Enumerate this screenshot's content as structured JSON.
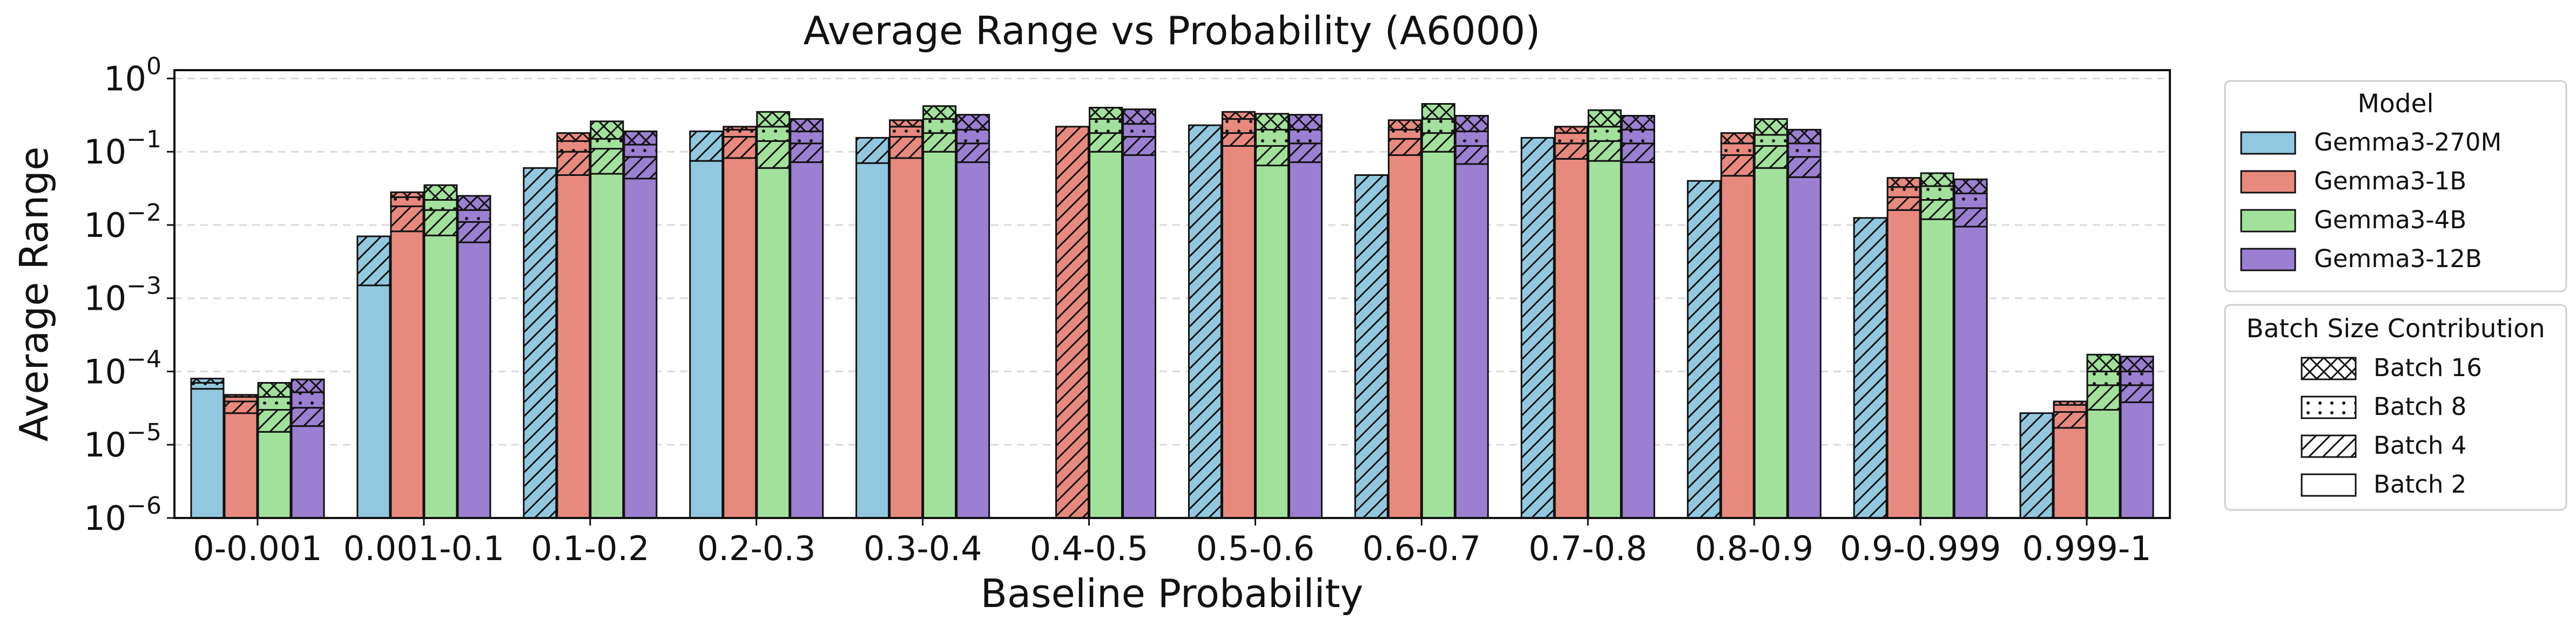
{
  "chart_data": {
    "type": "bar",
    "title": "Average Range vs Probability (A6000)",
    "xlabel": "Baseline Probability",
    "ylabel": "Average Range",
    "yscale": "log",
    "ylim": [
      1e-06,
      1.3
    ],
    "y_ticks": [
      {
        "value": 1e-06,
        "base": "10",
        "exp": "−6"
      },
      {
        "value": 1e-05,
        "base": "10",
        "exp": "−5"
      },
      {
        "value": 0.0001,
        "base": "10",
        "exp": "−4"
      },
      {
        "value": 0.001,
        "base": "10",
        "exp": "−3"
      },
      {
        "value": 0.01,
        "base": "10",
        "exp": "−2"
      },
      {
        "value": 0.1,
        "base": "10",
        "exp": "−1"
      },
      {
        "value": 1,
        "base": "10",
        "exp": "0"
      }
    ],
    "grid": "y-dashed",
    "categories": [
      "0-0.001",
      "0.001-0.1",
      "0.1-0.2",
      "0.2-0.3",
      "0.3-0.4",
      "0.4-0.5",
      "0.5-0.6",
      "0.6-0.7",
      "0.7-0.8",
      "0.8-0.9",
      "0.9-0.999",
      "0.999-1"
    ],
    "series": [
      {
        "name": "Gemma3-270M",
        "color": "#92c8df",
        "values": [
          {
            "b2": 5.8e-05,
            "b4": 5.8e-05,
            "b8": 7e-05,
            "b16": 8e-05
          },
          {
            "b2": 0.0015,
            "b4": 0.007,
            "b8": 0.007,
            "b16": 0.007
          },
          {
            "b2": 0.0,
            "b4": 0.06,
            "b8": 0.06,
            "b16": 0.06
          },
          {
            "b2": 0.075,
            "b4": 0.19,
            "b8": 0.19,
            "b16": 0.19
          },
          {
            "b2": 0.07,
            "b4": 0.155,
            "b8": 0.155,
            "b16": 0.155
          },
          {
            "b2": 0,
            "b4": 0,
            "b8": 0,
            "b16": 0
          },
          {
            "b2": 0.0,
            "b4": 0.23,
            "b8": 0.23,
            "b16": 0.23
          },
          {
            "b2": 0.0,
            "b4": 0.048,
            "b8": 0.048,
            "b16": 0.048
          },
          {
            "b2": 0.0,
            "b4": 0.155,
            "b8": 0.155,
            "b16": 0.155
          },
          {
            "b2": 0.0,
            "b4": 0.04,
            "b8": 0.04,
            "b16": 0.04
          },
          {
            "b2": 0.0,
            "b4": 0.0125,
            "b8": 0.0125,
            "b16": 0.0125
          },
          {
            "b2": 0.0,
            "b4": 2.7e-05,
            "b8": 2.7e-05,
            "b16": 2.7e-05
          }
        ]
      },
      {
        "name": "Gemma3-1B",
        "color": "#e8897e",
        "values": [
          {
            "b2": 2.7e-05,
            "b4": 3.9e-05,
            "b8": 4.5e-05,
            "b16": 4.8e-05
          },
          {
            "b2": 0.0082,
            "b4": 0.018,
            "b8": 0.024,
            "b16": 0.028
          },
          {
            "b2": 0.048,
            "b4": 0.1,
            "b8": 0.14,
            "b16": 0.18
          },
          {
            "b2": 0.082,
            "b4": 0.16,
            "b8": 0.2,
            "b16": 0.22
          },
          {
            "b2": 0.082,
            "b4": 0.16,
            "b8": 0.22,
            "b16": 0.27
          },
          {
            "b2": 0.0,
            "b4": 0.22,
            "b8": 0.22,
            "b16": 0.22
          },
          {
            "b2": 0.12,
            "b4": 0.18,
            "b8": 0.28,
            "b16": 0.35
          },
          {
            "b2": 0.09,
            "b4": 0.15,
            "b8": 0.2,
            "b16": 0.27
          },
          {
            "b2": 0.08,
            "b4": 0.13,
            "b8": 0.18,
            "b16": 0.22
          },
          {
            "b2": 0.047,
            "b4": 0.09,
            "b8": 0.13,
            "b16": 0.18
          },
          {
            "b2": 0.016,
            "b4": 0.024,
            "b8": 0.033,
            "b16": 0.044
          },
          {
            "b2": 1.7e-05,
            "b4": 2.8e-05,
            "b8": 3.5e-05,
            "b16": 3.9e-05
          }
        ]
      },
      {
        "name": "Gemma3-4B",
        "color": "#a2e19c",
        "values": [
          {
            "b2": 1.5e-05,
            "b4": 3e-05,
            "b8": 4.5e-05,
            "b16": 7e-05
          },
          {
            "b2": 0.0072,
            "b4": 0.016,
            "b8": 0.022,
            "b16": 0.035
          },
          {
            "b2": 0.05,
            "b4": 0.11,
            "b8": 0.15,
            "b16": 0.26
          },
          {
            "b2": 0.06,
            "b4": 0.14,
            "b8": 0.22,
            "b16": 0.35
          },
          {
            "b2": 0.1,
            "b4": 0.18,
            "b8": 0.28,
            "b16": 0.42
          },
          {
            "b2": 0.1,
            "b4": 0.18,
            "b8": 0.28,
            "b16": 0.4
          },
          {
            "b2": 0.065,
            "b4": 0.12,
            "b8": 0.2,
            "b16": 0.33
          },
          {
            "b2": 0.1,
            "b4": 0.18,
            "b8": 0.28,
            "b16": 0.45
          },
          {
            "b2": 0.075,
            "b4": 0.14,
            "b8": 0.22,
            "b16": 0.37
          },
          {
            "b2": 0.06,
            "b4": 0.12,
            "b8": 0.17,
            "b16": 0.28
          },
          {
            "b2": 0.012,
            "b4": 0.022,
            "b8": 0.034,
            "b16": 0.051
          },
          {
            "b2": 3e-05,
            "b4": 6.5e-05,
            "b8": 0.0001,
            "b16": 0.00017
          }
        ]
      },
      {
        "name": "Gemma3-12B",
        "color": "#9b7fd1",
        "values": [
          {
            "b2": 1.8e-05,
            "b4": 3.2e-05,
            "b8": 5.2e-05,
            "b16": 7.8e-05
          },
          {
            "b2": 0.0058,
            "b4": 0.011,
            "b8": 0.016,
            "b16": 0.025
          },
          {
            "b2": 0.043,
            "b4": 0.085,
            "b8": 0.125,
            "b16": 0.19
          },
          {
            "b2": 0.072,
            "b4": 0.13,
            "b8": 0.19,
            "b16": 0.28
          },
          {
            "b2": 0.072,
            "b4": 0.13,
            "b8": 0.2,
            "b16": 0.32
          },
          {
            "b2": 0.09,
            "b4": 0.16,
            "b8": 0.24,
            "b16": 0.38
          },
          {
            "b2": 0.072,
            "b4": 0.13,
            "b8": 0.2,
            "b16": 0.32
          },
          {
            "b2": 0.068,
            "b4": 0.12,
            "b8": 0.19,
            "b16": 0.31
          },
          {
            "b2": 0.072,
            "b4": 0.13,
            "b8": 0.2,
            "b16": 0.31
          },
          {
            "b2": 0.045,
            "b4": 0.085,
            "b8": 0.13,
            "b16": 0.2
          },
          {
            "b2": 0.0095,
            "b4": 0.017,
            "b8": 0.027,
            "b16": 0.042
          },
          {
            "b2": 3.8e-05,
            "b4": 6.5e-05,
            "b8": 0.0001,
            "b16": 0.00016
          }
        ]
      }
    ],
    "legend_model": {
      "title": "Model",
      "entries": [
        "Gemma3-270M",
        "Gemma3-1B",
        "Gemma3-4B",
        "Gemma3-12B"
      ],
      "placement": "right-top"
    },
    "legend_batch": {
      "title": "Batch Size Contribution",
      "entries": [
        {
          "label": "Batch 16",
          "pattern": "crosshatch"
        },
        {
          "label": "Batch 8",
          "pattern": "dots"
        },
        {
          "label": "Batch 4",
          "pattern": "diagonal"
        },
        {
          "label": "Batch 2",
          "pattern": "none"
        }
      ],
      "placement": "right-middle"
    }
  }
}
